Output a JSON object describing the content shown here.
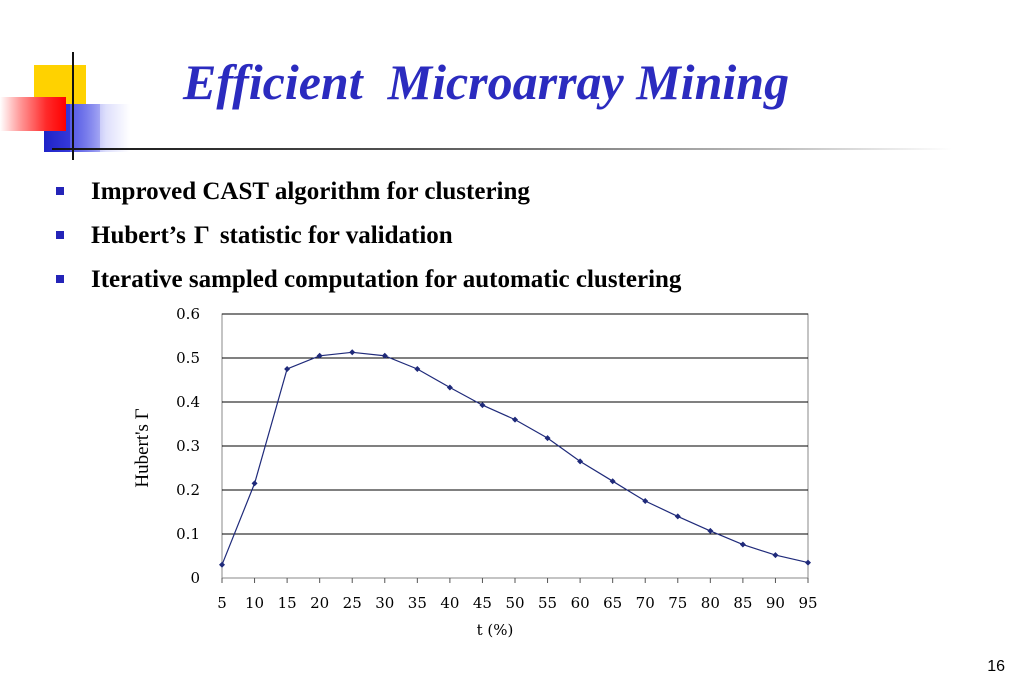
{
  "slide": {
    "title": "Efficient  Microarray Mining",
    "bullets": [
      {
        "pre": "Improved CAST algorithm for clustering",
        "gamma": "",
        "post": ""
      },
      {
        "pre": "Hubert’s",
        "gamma": "Γ",
        "post": "statistic for validation"
      },
      {
        "pre": "Iterative sampled computation for automatic clustering",
        "gamma": "",
        "post": ""
      }
    ],
    "page_number": "16",
    "colors": {
      "title": "#2b2bbf",
      "series": "#1f2a7a",
      "bullet": "#2424b8"
    }
  },
  "chart_data": {
    "type": "line",
    "title": "",
    "xlabel": "t (%)",
    "ylabel": "Hubert's Γ",
    "x": [
      5,
      10,
      15,
      20,
      25,
      30,
      35,
      40,
      45,
      50,
      55,
      60,
      65,
      70,
      75,
      80,
      85,
      90,
      95
    ],
    "series": [
      {
        "name": "",
        "values": [
          0.03,
          0.215,
          0.475,
          0.505,
          0.513,
          0.505,
          0.475,
          0.433,
          0.393,
          0.36,
          0.318,
          0.265,
          0.22,
          0.175,
          0.14,
          0.107,
          0.076,
          0.052,
          0.035
        ]
      }
    ],
    "xlim": [
      5,
      95
    ],
    "ylim": [
      0,
      0.6
    ],
    "yticks": [
      "0",
      "0.1",
      "0.2",
      "0.3",
      "0.4",
      "0.5",
      "0.6"
    ],
    "xticks": [
      "5",
      "10",
      "15",
      "20",
      "25",
      "30",
      "35",
      "40",
      "45",
      "50",
      "55",
      "60",
      "65",
      "70",
      "75",
      "80",
      "85",
      "90",
      "95"
    ],
    "grid": "horizontal",
    "legend": "none"
  }
}
